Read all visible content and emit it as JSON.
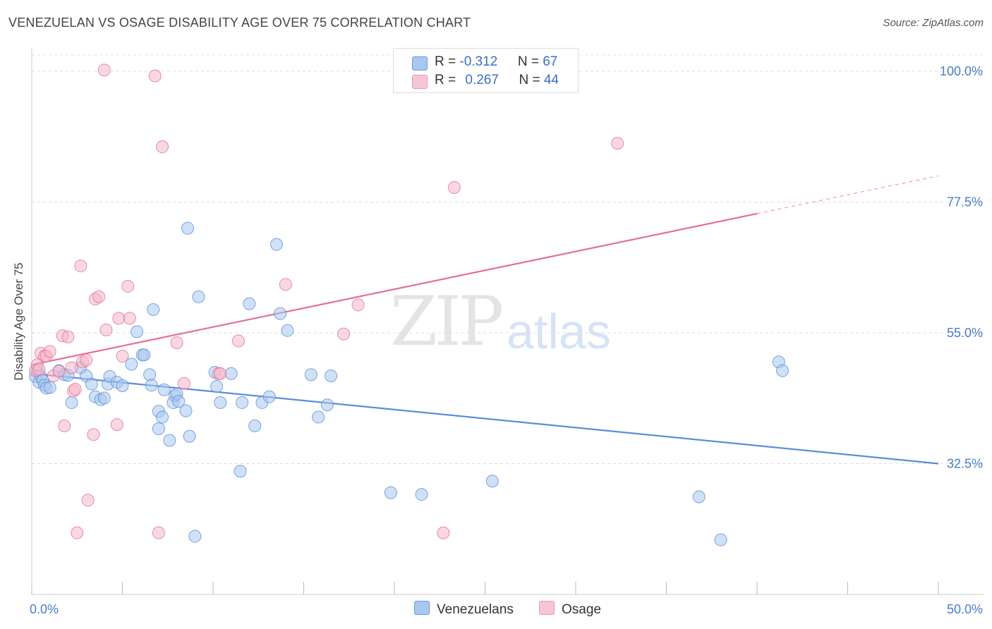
{
  "header": {
    "title": "VENEZUELAN VS OSAGE DISABILITY AGE OVER 75 CORRELATION CHART",
    "source": "Source: ZipAtlas.com"
  },
  "watermark": {
    "zip": "ZIP",
    "atlas": "atlas"
  },
  "legend": {
    "rows": [
      {
        "r_label": "R = ",
        "r_value": "-0.312",
        "n_label": "N = ",
        "n_value": "67",
        "color": "#a9c8f0"
      },
      {
        "r_label": "R = ",
        "r_value": "0.267",
        "n_label": "N = ",
        "n_value": "44",
        "color": "#f6b8cb"
      }
    ]
  },
  "bottom_legend": [
    {
      "label": "Venezuelans",
      "color": "#a9c8f0"
    },
    {
      "label": "Osage",
      "color": "#f6b8cb"
    }
  ],
  "chart_data": {
    "type": "scatter",
    "title": "VENEZUELAN VS OSAGE DISABILITY AGE OVER 75 CORRELATION CHART",
    "xlabel": "",
    "ylabel": "Disability Age Over 75",
    "xlim": [
      0,
      50
    ],
    "ylim": [
      10,
      104
    ],
    "x_tick_labels": [
      "0.0%",
      "50.0%"
    ],
    "y_ticks": [
      32.5,
      55.0,
      77.5,
      100.0
    ],
    "y_tick_labels": [
      "32.5%",
      "55.0%",
      "77.5%",
      "100.0%"
    ],
    "grid": "horizontal dashed",
    "legend_position": "top-center",
    "series": [
      {
        "name": "Venezuelans",
        "color": "#5b8fd6",
        "fill": "#a9c8f0",
        "trend": {
          "x": [
            0,
            50
          ],
          "y": [
            48.0,
            32.5
          ],
          "extrapolated": false
        },
        "points": [
          [
            0.2,
            47.5
          ],
          [
            0.3,
            48.5
          ],
          [
            0.4,
            46.5
          ],
          [
            0.5,
            47.5
          ],
          [
            0.6,
            46.8
          ],
          [
            0.7,
            46.0
          ],
          [
            0.8,
            45.5
          ],
          [
            1.0,
            45.6
          ],
          [
            1.5,
            48.5
          ],
          [
            1.8,
            47.8
          ],
          [
            2.0,
            47.7
          ],
          [
            2.2,
            43.0
          ],
          [
            2.7,
            49.0
          ],
          [
            3.0,
            47.6
          ],
          [
            3.3,
            46.2
          ],
          [
            3.5,
            44.0
          ],
          [
            3.8,
            43.5
          ],
          [
            4.0,
            43.8
          ],
          [
            4.2,
            46.2
          ],
          [
            4.3,
            47.5
          ],
          [
            4.7,
            46.5
          ],
          [
            5.0,
            45.9
          ],
          [
            5.5,
            49.6
          ],
          [
            5.8,
            55.2
          ],
          [
            6.1,
            51.2
          ],
          [
            6.2,
            51.2
          ],
          [
            6.5,
            47.8
          ],
          [
            6.6,
            46.0
          ],
          [
            6.7,
            59.0
          ],
          [
            7.0,
            41.5
          ],
          [
            7.0,
            38.5
          ],
          [
            7.2,
            40.5
          ],
          [
            7.3,
            45.2
          ],
          [
            7.6,
            36.5
          ],
          [
            7.8,
            43.0
          ],
          [
            7.9,
            44.2
          ],
          [
            8.0,
            44.5
          ],
          [
            8.1,
            43.2
          ],
          [
            8.5,
            41.6
          ],
          [
            8.6,
            73.0
          ],
          [
            8.7,
            37.2
          ],
          [
            9.0,
            20.0
          ],
          [
            9.2,
            61.2
          ],
          [
            10.1,
            48.2
          ],
          [
            10.2,
            45.8
          ],
          [
            10.4,
            43.0
          ],
          [
            11.0,
            48.0
          ],
          [
            11.5,
            31.2
          ],
          [
            11.6,
            43.0
          ],
          [
            12.0,
            60.0
          ],
          [
            12.3,
            39.0
          ],
          [
            12.7,
            43.0
          ],
          [
            13.1,
            44.0
          ],
          [
            13.5,
            70.2
          ],
          [
            13.7,
            58.3
          ],
          [
            14.1,
            55.4
          ],
          [
            15.4,
            47.8
          ],
          [
            15.8,
            40.5
          ],
          [
            16.3,
            42.6
          ],
          [
            16.5,
            47.6
          ],
          [
            19.8,
            27.5
          ],
          [
            21.5,
            27.2
          ],
          [
            25.4,
            29.5
          ],
          [
            36.8,
            26.8
          ],
          [
            38.0,
            19.4
          ],
          [
            41.2,
            50.0
          ],
          [
            41.4,
            48.5
          ]
        ]
      },
      {
        "name": "Osage",
        "color": "#e36f98",
        "fill": "#f6b8cb",
        "trend": {
          "x": [
            0,
            40
          ],
          "y": [
            49.5,
            75.5
          ],
          "dashed_to": [
            50,
            82.0
          ]
        },
        "points": [
          [
            0.2,
            48.5
          ],
          [
            0.3,
            49.5
          ],
          [
            0.4,
            48.7
          ],
          [
            0.5,
            51.5
          ],
          [
            0.7,
            51.0
          ],
          [
            0.8,
            51.0
          ],
          [
            1.0,
            51.8
          ],
          [
            1.2,
            47.6
          ],
          [
            1.5,
            48.4
          ],
          [
            1.7,
            54.5
          ],
          [
            1.8,
            39.0
          ],
          [
            2.0,
            54.3
          ],
          [
            2.2,
            49.0
          ],
          [
            2.3,
            45.0
          ],
          [
            2.4,
            45.3
          ],
          [
            2.5,
            20.6
          ],
          [
            2.7,
            66.5
          ],
          [
            2.8,
            50.0
          ],
          [
            3.0,
            50.3
          ],
          [
            3.1,
            26.2
          ],
          [
            3.4,
            37.5
          ],
          [
            3.5,
            60.8
          ],
          [
            3.7,
            61.2
          ],
          [
            4.0,
            100.2
          ],
          [
            4.1,
            55.5
          ],
          [
            4.7,
            39.2
          ],
          [
            4.8,
            57.5
          ],
          [
            5.0,
            51.0
          ],
          [
            5.3,
            63.0
          ],
          [
            5.4,
            57.5
          ],
          [
            6.8,
            99.2
          ],
          [
            7.0,
            20.6
          ],
          [
            7.2,
            87.0
          ],
          [
            8.0,
            53.3
          ],
          [
            8.4,
            46.3
          ],
          [
            10.3,
            48.0
          ],
          [
            10.4,
            48.0
          ],
          [
            11.4,
            53.6
          ],
          [
            14.0,
            63.3
          ],
          [
            17.2,
            54.8
          ],
          [
            18.0,
            59.8
          ],
          [
            22.7,
            20.6
          ],
          [
            23.3,
            80.0
          ],
          [
            32.3,
            87.6
          ]
        ]
      }
    ]
  }
}
